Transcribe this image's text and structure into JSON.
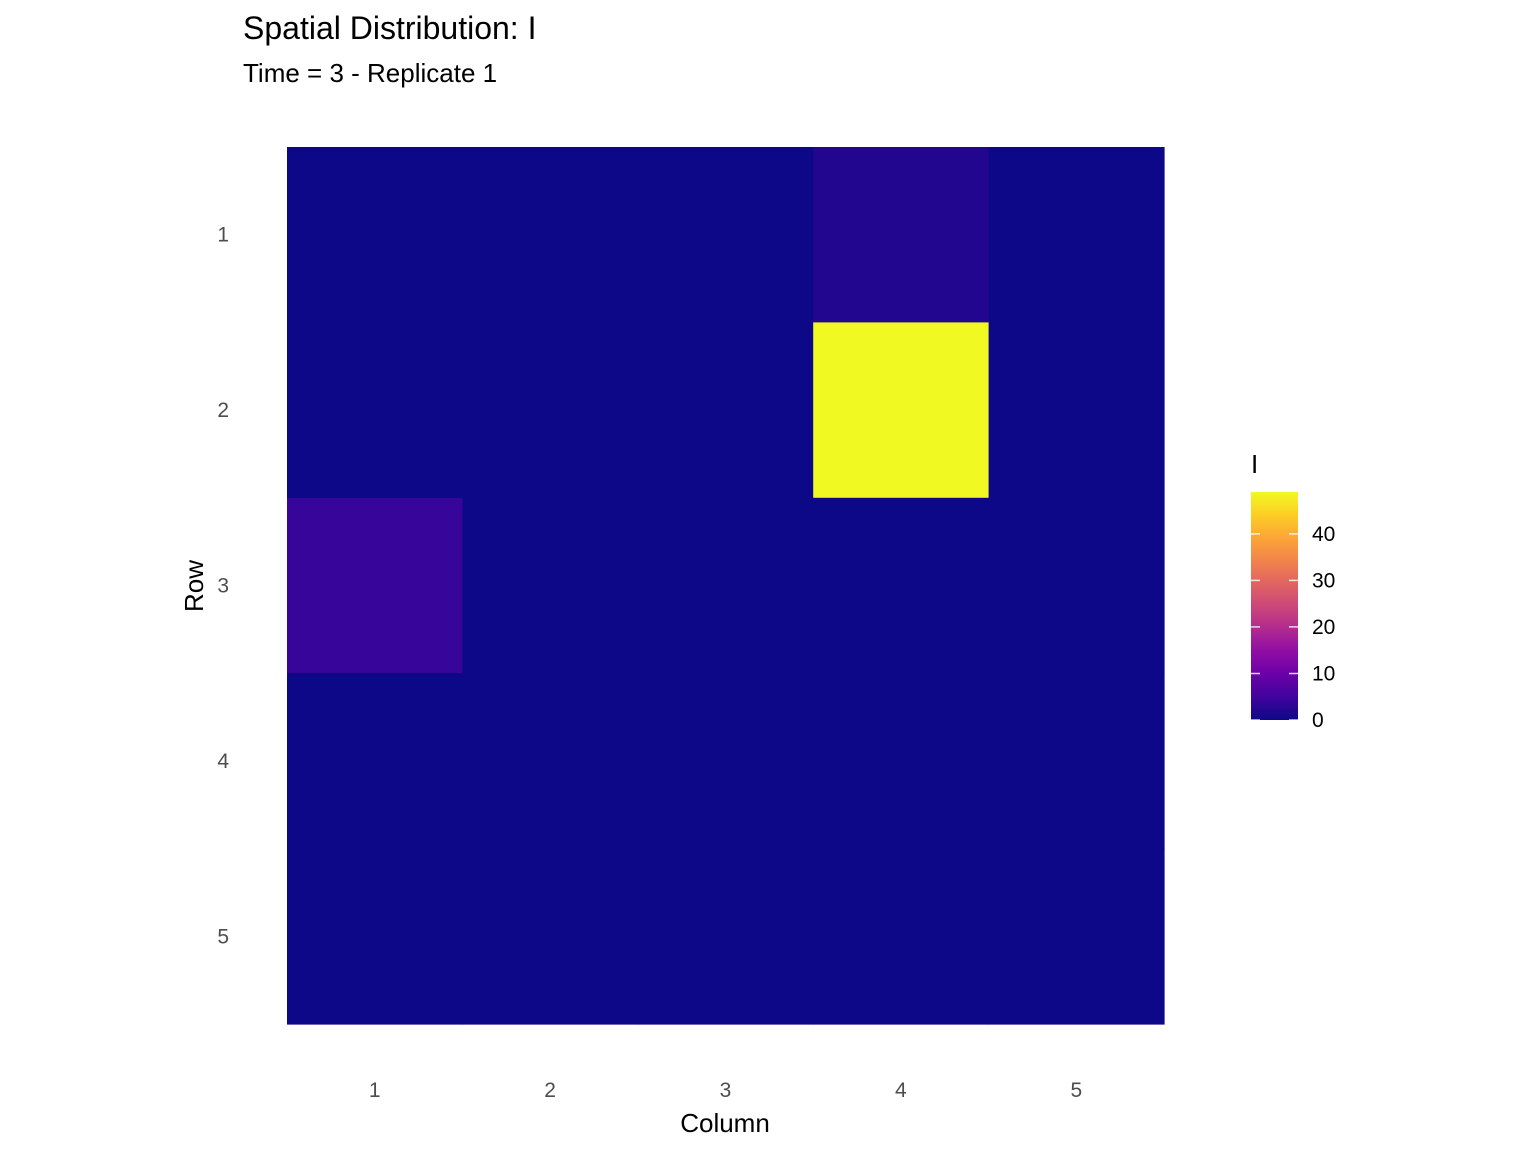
{
  "chart_data": {
    "type": "heatmap",
    "title": "Spatial Distribution: I",
    "subtitle": "Time = 3 - Replicate 1",
    "xlabel": "Column",
    "ylabel": "Row",
    "x_categories": [
      "1",
      "2",
      "3",
      "4",
      "5"
    ],
    "y_categories": [
      "1",
      "2",
      "3",
      "4",
      "5"
    ],
    "values": [
      [
        0,
        0,
        0,
        2,
        0
      ],
      [
        0,
        0,
        0,
        49,
        0
      ],
      [
        4,
        0,
        0,
        0,
        0
      ],
      [
        0,
        0,
        0,
        0,
        0
      ],
      [
        0,
        0,
        0,
        0,
        0
      ]
    ],
    "legend": {
      "title": "I",
      "min": 0,
      "max": 49,
      "ticks": [
        0,
        10,
        20,
        30,
        40
      ],
      "palette": "plasma",
      "placement": "right"
    },
    "grid": false
  }
}
